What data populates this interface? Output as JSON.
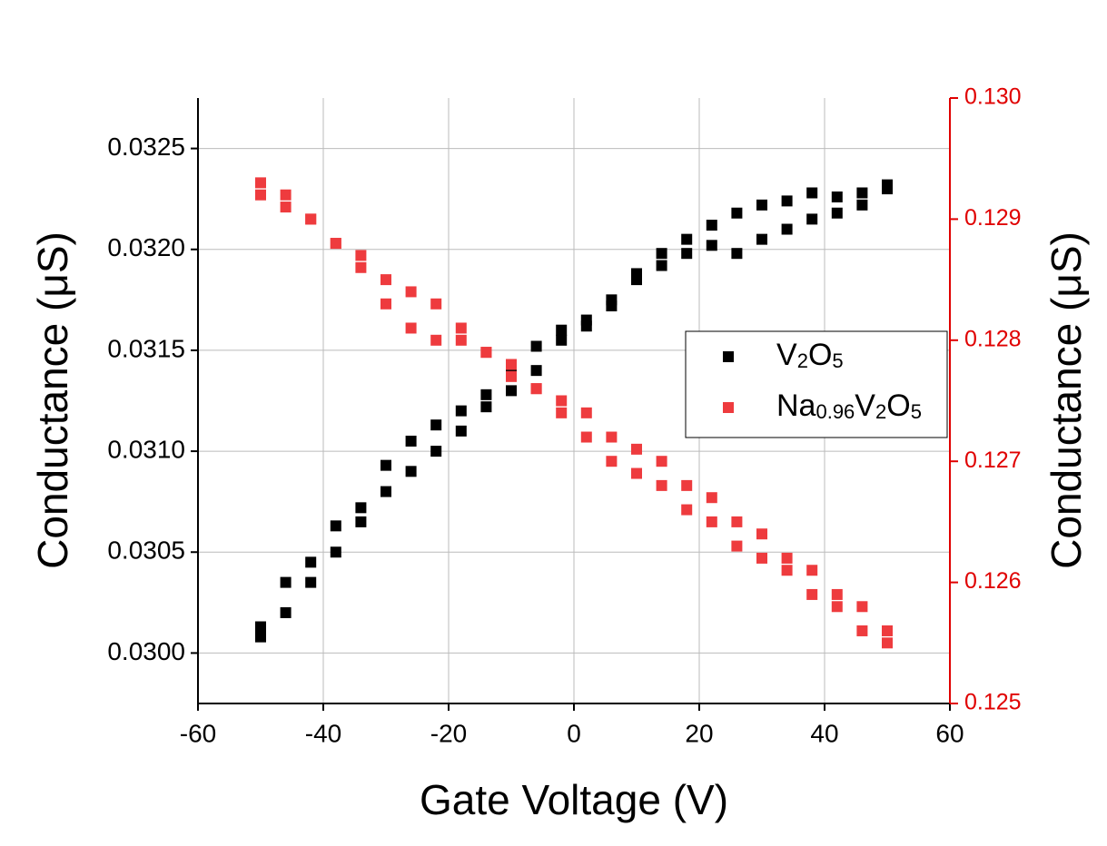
{
  "chart_data": {
    "type": "scatter",
    "xlabel": "Gate Voltage (V)",
    "ylabel": "Conductance (μS)",
    "y2label": "Conductance (μS)",
    "xlim": [
      -60,
      60
    ],
    "xticks": [
      -60,
      -40,
      -20,
      0,
      20,
      40,
      60
    ],
    "ylim": [
      0.02975,
      0.03275
    ],
    "yticks": [
      {
        "value": 0.03,
        "label": "0.0300"
      },
      0.0305,
      {
        "value": 0.031,
        "label": "0.0310"
      },
      0.0315,
      {
        "value": 0.032,
        "label": "0.0320"
      },
      0.0325
    ],
    "y2lim": [
      0.125,
      0.13
    ],
    "y2ticks": [
      0.125,
      0.126,
      0.127,
      0.128,
      0.129,
      {
        "value": 0.13,
        "label": "0.130"
      }
    ],
    "grid": true,
    "x": [
      -50,
      -46,
      -42,
      -38,
      -34,
      -30,
      -26,
      -22,
      -18,
      -14,
      -10,
      -6,
      -2,
      2,
      6,
      10,
      14,
      18,
      22,
      26,
      30,
      34,
      38,
      42,
      46,
      50,
      50,
      46,
      42,
      38,
      34,
      30,
      26,
      22,
      18,
      14,
      10,
      6,
      2,
      -2,
      -6,
      -10,
      -14,
      -18,
      -22,
      -26,
      -30,
      -34,
      -38,
      -42,
      -46,
      -50
    ],
    "series": [
      {
        "name": "V2O5",
        "color": "#000000",
        "values": [
          0.03013,
          0.03035,
          0.03045,
          0.03063,
          0.03072,
          0.03093,
          0.03105,
          0.03113,
          0.0312,
          0.03128,
          0.0314,
          0.03152,
          0.0316,
          0.03165,
          0.03175,
          0.03188,
          0.03198,
          0.03205,
          0.03212,
          0.03218,
          0.03222,
          0.03224,
          0.03228,
          0.03226,
          0.03228,
          0.0323,
          0.03232,
          0.03222,
          0.03218,
          0.03215,
          0.0321,
          0.03205,
          0.03198,
          0.03202,
          0.03198,
          0.03192,
          0.03185,
          0.03172,
          0.03162,
          0.03155,
          0.0314,
          0.0313,
          0.03122,
          0.0311,
          0.031,
          0.0309,
          0.0308,
          0.03065,
          0.0305,
          0.03035,
          0.0302,
          0.03008
        ]
      },
      {
        "name": "Na0.96V2O5",
        "color": "#ee3b3e",
        "axis": "y2",
        "values": [
          0.1293,
          0.1292,
          0.129,
          0.1288,
          0.1287,
          0.1285,
          0.1284,
          0.1283,
          0.1281,
          0.1279,
          0.1277,
          0.1276,
          0.1275,
          0.1274,
          0.1272,
          0.1271,
          0.127,
          0.1268,
          0.1267,
          0.1265,
          0.1264,
          0.1262,
          0.1261,
          0.1259,
          0.1258,
          0.1256,
          0.1255,
          0.1256,
          0.1258,
          0.1259,
          0.1261,
          0.1262,
          0.1263,
          0.1265,
          0.1266,
          0.1268,
          0.1269,
          0.127,
          0.1272,
          0.1274,
          0.1276,
          0.1278,
          0.1279,
          0.128,
          0.128,
          0.1281,
          0.1283,
          0.1286,
          0.1288,
          0.129,
          0.1291,
          0.1292
        ]
      }
    ]
  }
}
